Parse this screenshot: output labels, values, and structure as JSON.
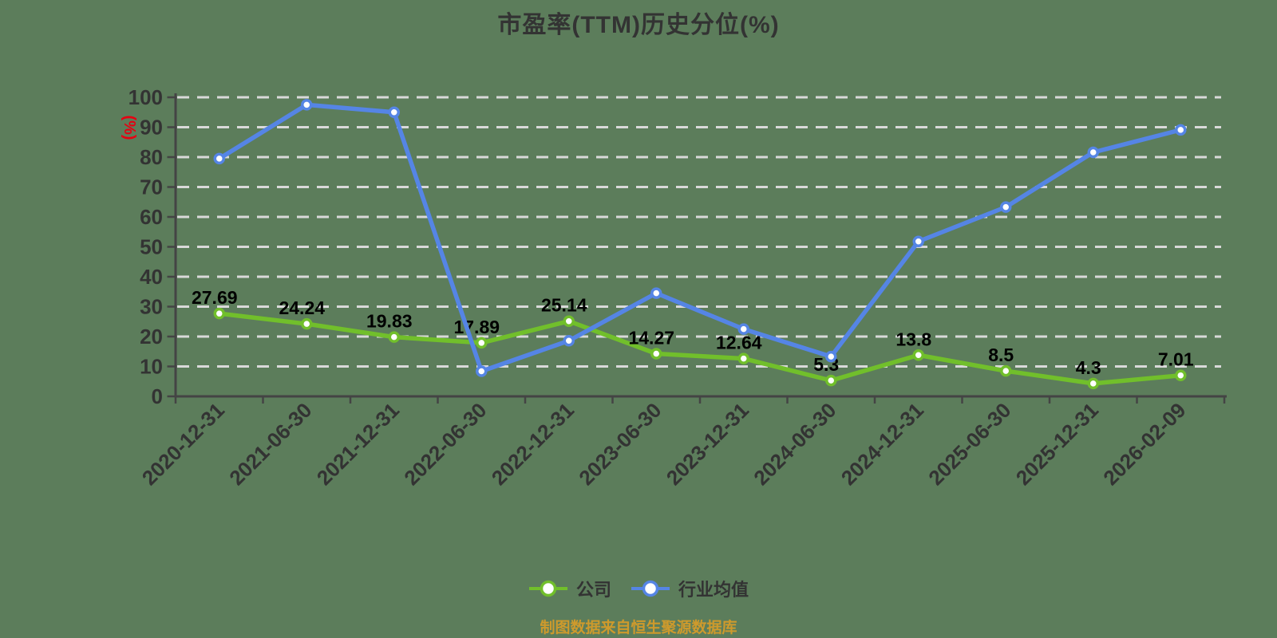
{
  "title": "市盈率(TTM)历史分位(%)",
  "footer": "制图数据来自恒生聚源数据库",
  "y_axis_name": "(%)",
  "colors": {
    "background": "#5C7D5B",
    "title_text": "#333333",
    "axis_line": "#444444",
    "axis_label": "#333333",
    "gridline": "#D9D9D9",
    "y_axis_name_red": "#E60012",
    "data_label": "#000000",
    "footer_text": "#CE9A2C",
    "company_green": "#71BF2B",
    "industry_blue": "#5585E5",
    "marker_fill": "#FFFFFF"
  },
  "legend": {
    "items": [
      {
        "label": "公司",
        "color": "#71BF2B"
      },
      {
        "label": "行业均值",
        "color": "#5585E5"
      }
    ]
  },
  "chart_data": {
    "type": "line",
    "title": "市盈率(TTM)历史分位(%)",
    "ylabel": "(%)",
    "ylim": [
      0,
      100
    ],
    "ytick_interval": 10,
    "grid": "horizontal-dashed",
    "legend_position": "bottom",
    "categories": [
      "2020-12-31",
      "2021-06-30",
      "2021-12-31",
      "2022-06-30",
      "2022-12-31",
      "2023-06-30",
      "2023-12-31",
      "2024-06-30",
      "2024-12-31",
      "2025-06-30",
      "2025-12-31",
      "2026-02-09"
    ],
    "series": [
      {
        "name": "公司",
        "color": "#71BF2B",
        "show_point_labels": true,
        "values": [
          27.69,
          24.24,
          19.83,
          17.89,
          25.14,
          14.27,
          12.64,
          5.3,
          13.8,
          8.5,
          4.3,
          7.01
        ]
      },
      {
        "name": "行业均值",
        "color": "#5585E5",
        "show_point_labels": false,
        "estimated_from_pixels": true,
        "values": [
          79.5,
          97.5,
          95,
          8.4,
          18.6,
          34.5,
          22.5,
          13.3,
          51.8,
          63.3,
          81.6,
          89.1
        ]
      }
    ]
  }
}
